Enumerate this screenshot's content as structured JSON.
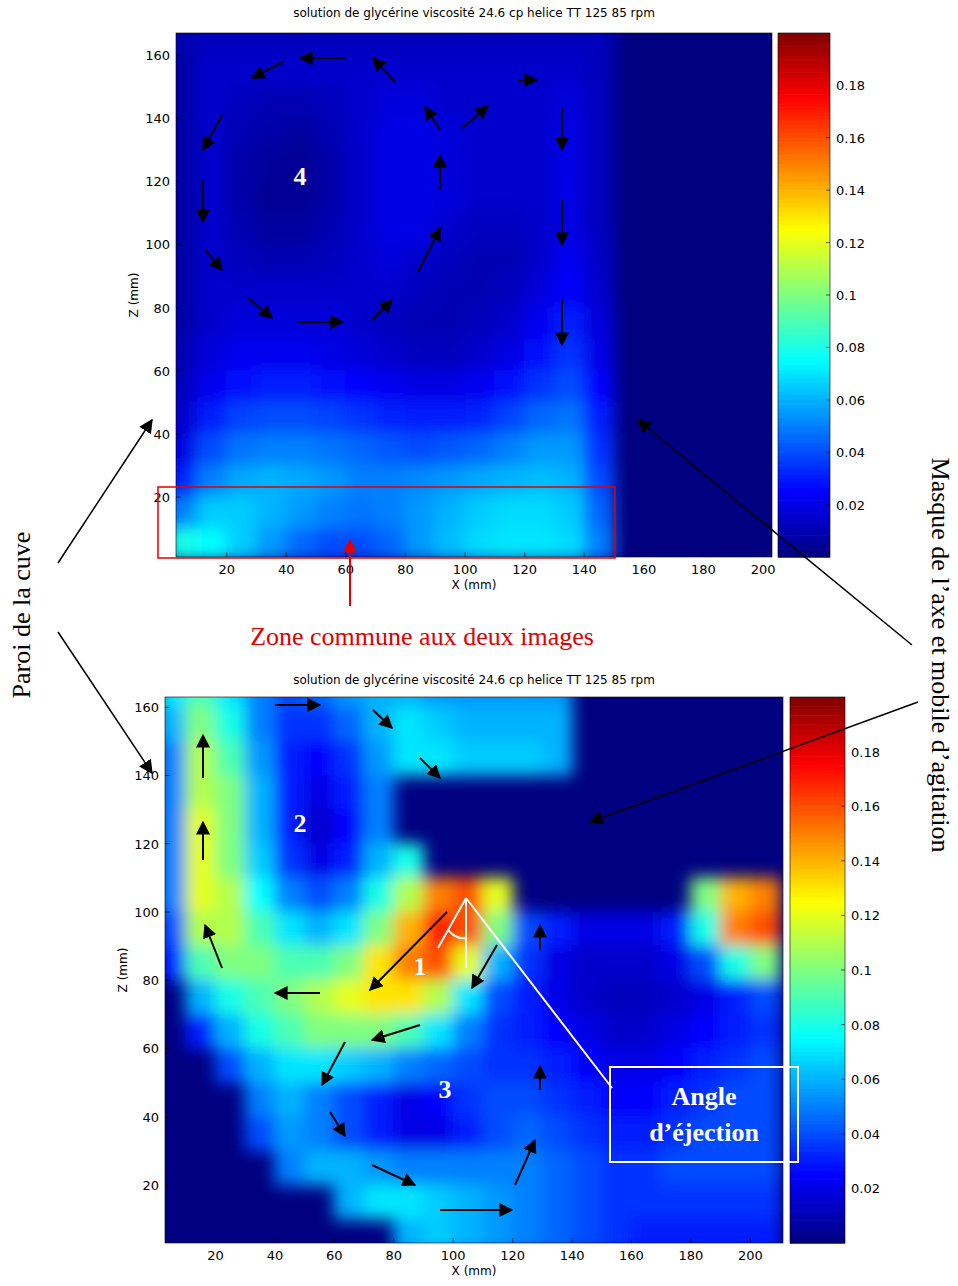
{
  "chart_data": [
    {
      "type": "heatmap",
      "title": "solution de glycérine  viscosité 24.6 cp  helice TT 125 85 rpm",
      "x_label": "X (mm)",
      "y_label": "Z (mm)",
      "xlim": [
        3,
        203
      ],
      "ylim": [
        1,
        167
      ],
      "xticks": [
        20,
        40,
        60,
        80,
        100,
        120,
        140,
        160,
        180,
        200
      ],
      "yticks": [
        20,
        40,
        60,
        80,
        100,
        120,
        140,
        160
      ],
      "colorbar": {
        "range": [
          0,
          0.2
        ],
        "ticks": [
          0.02,
          0.04,
          0.06,
          0.08,
          0.1,
          0.12,
          0.14,
          0.16,
          0.18
        ]
      },
      "region_labels": [
        "4"
      ],
      "x": [
        5,
        15,
        25,
        35,
        45,
        55,
        65,
        75,
        85,
        95,
        105,
        115,
        125,
        135,
        145,
        155,
        165,
        175,
        185,
        195,
        205
      ],
      "y": [
        165,
        155,
        145,
        135,
        125,
        115,
        105,
        95,
        85,
        75,
        65,
        55,
        45,
        35,
        25,
        15,
        5
      ],
      "values": [
        [
          0.01,
          0.012,
          0.012,
          0.012,
          0.012,
          0.012,
          0.012,
          0.012,
          0.012,
          0.012,
          0.012,
          0.012,
          0.012,
          0.012,
          0.012,
          null,
          null,
          null,
          null,
          null,
          null
        ],
        [
          0.008,
          0.015,
          0.015,
          0.015,
          0.015,
          0.015,
          0.015,
          0.015,
          0.015,
          0.015,
          0.015,
          0.015,
          0.015,
          0.015,
          0.012,
          null,
          null,
          null,
          null,
          null,
          null
        ],
        [
          0.008,
          0.015,
          0.012,
          0.01,
          0.01,
          0.012,
          0.015,
          0.018,
          0.018,
          0.015,
          0.015,
          0.015,
          0.015,
          0.018,
          0.012,
          null,
          null,
          null,
          null,
          null,
          null
        ],
        [
          0.008,
          0.015,
          0.01,
          0.008,
          0.006,
          0.01,
          0.015,
          0.02,
          0.02,
          0.018,
          0.015,
          0.015,
          0.015,
          0.02,
          0.012,
          null,
          null,
          null,
          null,
          null,
          null
        ],
        [
          0.008,
          0.015,
          0.008,
          0.005,
          0.004,
          0.008,
          0.015,
          0.02,
          0.02,
          0.018,
          0.015,
          0.015,
          0.015,
          0.02,
          0.012,
          null,
          null,
          null,
          null,
          null,
          null
        ],
        [
          0.008,
          0.015,
          0.008,
          0.004,
          0.004,
          0.008,
          0.015,
          0.02,
          0.02,
          0.018,
          0.015,
          0.015,
          0.015,
          0.02,
          0.012,
          null,
          null,
          null,
          null,
          null,
          null
        ],
        [
          0.008,
          0.015,
          0.01,
          0.006,
          0.006,
          0.01,
          0.015,
          0.02,
          0.02,
          0.015,
          0.012,
          0.012,
          0.015,
          0.02,
          0.012,
          null,
          null,
          null,
          null,
          null,
          null
        ],
        [
          0.008,
          0.015,
          0.012,
          0.01,
          0.01,
          0.012,
          0.015,
          0.018,
          0.015,
          0.012,
          0.01,
          0.01,
          0.015,
          0.022,
          0.014,
          null,
          null,
          null,
          null,
          null,
          null
        ],
        [
          0.008,
          0.015,
          0.015,
          0.015,
          0.015,
          0.015,
          0.015,
          0.015,
          0.012,
          0.01,
          0.01,
          0.012,
          0.018,
          0.025,
          0.015,
          null,
          null,
          null,
          null,
          null,
          null
        ],
        [
          0.008,
          0.015,
          0.018,
          0.018,
          0.018,
          0.018,
          0.015,
          0.012,
          0.01,
          0.01,
          0.012,
          0.015,
          0.022,
          0.03,
          0.018,
          null,
          null,
          null,
          null,
          null,
          null
        ],
        [
          0.01,
          0.018,
          0.022,
          0.022,
          0.022,
          0.02,
          0.018,
          0.015,
          0.012,
          0.012,
          0.015,
          0.02,
          0.028,
          0.035,
          0.02,
          null,
          null,
          null,
          null,
          null,
          null
        ],
        [
          0.012,
          0.022,
          0.028,
          0.03,
          0.03,
          0.028,
          0.025,
          0.022,
          0.02,
          0.02,
          0.022,
          0.028,
          0.035,
          0.04,
          0.025,
          null,
          null,
          null,
          null,
          null,
          null
        ],
        [
          0.015,
          0.03,
          0.038,
          0.04,
          0.04,
          0.038,
          0.035,
          0.032,
          0.03,
          0.03,
          0.032,
          0.038,
          0.045,
          0.048,
          0.03,
          null,
          null,
          null,
          null,
          null,
          null
        ],
        [
          0.02,
          0.04,
          0.048,
          0.05,
          0.05,
          0.048,
          0.045,
          0.042,
          0.04,
          0.042,
          0.045,
          0.05,
          0.055,
          0.055,
          0.035,
          null,
          null,
          null,
          null,
          null,
          null
        ],
        [
          0.03,
          0.05,
          0.058,
          0.06,
          0.058,
          0.055,
          0.05,
          0.05,
          0.052,
          0.055,
          0.058,
          0.06,
          0.062,
          0.06,
          0.04,
          null,
          null,
          null,
          null,
          null,
          null
        ],
        [
          0.05,
          0.065,
          0.065,
          0.06,
          0.055,
          0.05,
          0.048,
          0.05,
          0.055,
          0.06,
          0.065,
          0.068,
          0.068,
          0.065,
          0.045,
          null,
          null,
          null,
          null,
          null,
          null
        ],
        [
          0.08,
          0.075,
          0.065,
          0.055,
          0.045,
          0.04,
          0.04,
          0.045,
          0.055,
          0.062,
          0.068,
          0.07,
          0.07,
          0.068,
          0.05,
          null,
          null,
          null,
          null,
          null,
          null
        ]
      ]
    },
    {
      "type": "heatmap",
      "title": "solution de glycérine  viscosité 24.6 cp  helice TT 125 85 rpm",
      "x_label": "X (mm)",
      "y_label": "Z (mm)",
      "xlim": [
        3,
        211
      ],
      "ylim": [
        3,
        163
      ],
      "xticks": [
        20,
        40,
        60,
        80,
        100,
        120,
        140,
        160,
        180,
        200
      ],
      "yticks": [
        20,
        40,
        60,
        80,
        100,
        120,
        140,
        160
      ],
      "colorbar": {
        "range": [
          0,
          0.2
        ],
        "ticks": [
          0.02,
          0.04,
          0.06,
          0.08,
          0.1,
          0.12,
          0.14,
          0.16,
          0.18
        ]
      },
      "region_labels": [
        "2",
        "1",
        "3"
      ],
      "x": [
        5,
        15,
        25,
        35,
        45,
        55,
        65,
        75,
        85,
        95,
        105,
        115,
        125,
        135,
        145,
        155,
        165,
        175,
        185,
        195,
        205
      ],
      "y": [
        165,
        155,
        145,
        135,
        125,
        115,
        105,
        95,
        85,
        75,
        65,
        55,
        45,
        35,
        25,
        15,
        5
      ],
      "values": [
        [
          0.07,
          0.09,
          0.07,
          0.05,
          0.04,
          0.045,
          0.055,
          0.06,
          0.06,
          0.055,
          0.055,
          0.055,
          0.055,
          0.055,
          null,
          null,
          null,
          null,
          null,
          null,
          null
        ],
        [
          0.06,
          0.1,
          0.08,
          0.05,
          0.035,
          0.035,
          0.045,
          0.06,
          0.07,
          0.065,
          0.06,
          0.06,
          0.06,
          0.06,
          null,
          null,
          null,
          null,
          null,
          null,
          null
        ],
        [
          0.05,
          0.11,
          0.09,
          0.055,
          0.03,
          0.025,
          0.035,
          0.055,
          0.07,
          0.07,
          0.065,
          0.065,
          0.065,
          0.06,
          null,
          null,
          null,
          null,
          null,
          null,
          null
        ],
        [
          0.05,
          0.11,
          0.1,
          0.06,
          0.03,
          0.02,
          0.03,
          0.05,
          null,
          null,
          null,
          null,
          null,
          null,
          null,
          null,
          null,
          null,
          null,
          null,
          null
        ],
        [
          0.05,
          0.12,
          0.1,
          0.06,
          0.03,
          0.015,
          0.025,
          0.05,
          null,
          null,
          null,
          null,
          null,
          null,
          null,
          null,
          null,
          null,
          null,
          null,
          null
        ],
        [
          0.05,
          0.12,
          0.1,
          0.065,
          0.035,
          0.02,
          0.03,
          0.06,
          0.08,
          null,
          null,
          null,
          null,
          null,
          null,
          null,
          null,
          null,
          null,
          null,
          null
        ],
        [
          0.05,
          0.12,
          0.11,
          0.075,
          0.05,
          0.04,
          0.05,
          0.08,
          0.11,
          0.15,
          0.16,
          0.12,
          null,
          null,
          null,
          null,
          null,
          null,
          0.1,
          0.14,
          0.15
        ],
        [
          0.04,
          0.11,
          0.11,
          0.09,
          0.07,
          0.06,
          0.07,
          0.1,
          0.14,
          0.17,
          0.16,
          0.1,
          0.04,
          0.03,
          0.02,
          0.02,
          0.02,
          0.03,
          0.08,
          0.15,
          0.16
        ],
        [
          0.03,
          0.09,
          0.1,
          0.1,
          0.09,
          0.09,
          0.1,
          0.13,
          0.15,
          0.16,
          0.12,
          0.06,
          0.035,
          0.02,
          0.015,
          0.015,
          0.015,
          0.02,
          0.04,
          0.08,
          0.1
        ],
        [
          null,
          0.06,
          0.08,
          0.09,
          0.1,
          0.11,
          0.12,
          0.13,
          0.13,
          0.11,
          0.07,
          0.04,
          0.03,
          0.02,
          0.015,
          0.012,
          0.012,
          0.015,
          0.02,
          0.03,
          0.04
        ],
        [
          null,
          0.03,
          0.06,
          0.08,
          0.09,
          0.1,
          0.1,
          0.1,
          0.09,
          0.07,
          0.05,
          0.035,
          0.03,
          0.025,
          0.02,
          0.015,
          0.015,
          0.02,
          0.025,
          0.03,
          0.035
        ],
        [
          null,
          null,
          0.04,
          0.06,
          0.07,
          0.07,
          0.065,
          0.06,
          0.05,
          0.045,
          0.04,
          0.035,
          0.035,
          0.03,
          0.025,
          0.02,
          0.02,
          0.025,
          0.03,
          0.035,
          0.04
        ],
        [
          null,
          null,
          null,
          0.05,
          0.06,
          0.05,
          0.04,
          0.03,
          0.02,
          0.025,
          0.035,
          0.04,
          0.04,
          0.035,
          0.03,
          0.025,
          0.025,
          0.03,
          0.035,
          0.04,
          0.04
        ],
        [
          null,
          null,
          null,
          0.04,
          0.055,
          0.05,
          0.04,
          0.03,
          0.02,
          0.02,
          0.03,
          0.04,
          0.045,
          0.04,
          0.035,
          0.03,
          0.03,
          0.035,
          0.04,
          0.04,
          0.04
        ],
        [
          null,
          null,
          null,
          null,
          0.05,
          0.06,
          0.06,
          0.055,
          0.05,
          0.05,
          0.05,
          0.05,
          0.05,
          0.045,
          0.04,
          0.035,
          0.035,
          0.04,
          0.04,
          0.04,
          0.04
        ],
        [
          null,
          null,
          null,
          null,
          null,
          null,
          0.06,
          0.07,
          0.07,
          0.065,
          0.06,
          0.055,
          0.05,
          0.045,
          0.04,
          0.035,
          0.035,
          0.035,
          0.035,
          0.035,
          0.035
        ],
        [
          null,
          null,
          null,
          null,
          null,
          null,
          null,
          null,
          0.06,
          0.065,
          0.06,
          0.055,
          0.05,
          0.045,
          0.04,
          0.035,
          0.03,
          0.03,
          0.03,
          0.03,
          0.03
        ]
      ]
    }
  ],
  "annotations": {
    "wall": "Paroi de la cuve",
    "mask": "Masque de l’axe et mobile d’agitation",
    "common_zone": "Zone commune aux deux images",
    "ejection_angle": "Angle d’éjection"
  }
}
